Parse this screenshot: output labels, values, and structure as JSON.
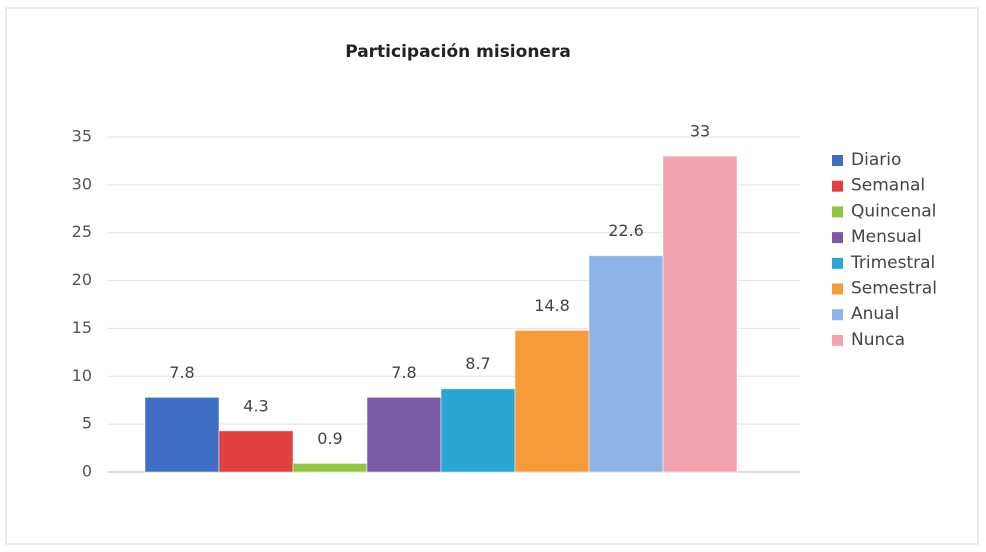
{
  "chart_data": {
    "type": "bar",
    "title": "Participación misionera",
    "categories": [
      null
    ],
    "series": [
      {
        "name": "Diario",
        "color": "#3f6fc4",
        "values": [
          7.8
        ]
      },
      {
        "name": "Semanal",
        "color": "#e0413f",
        "values": [
          4.3
        ]
      },
      {
        "name": "Quincenal",
        "color": "#8fc742",
        "values": [
          0.9
        ]
      },
      {
        "name": "Mensual",
        "color": "#7b5aa6",
        "values": [
          7.8
        ]
      },
      {
        "name": "Trimestral",
        "color": "#2aa6d3",
        "values": [
          8.7
        ]
      },
      {
        "name": "Semestral",
        "color": "#f79a3a",
        "values": [
          14.8
        ]
      },
      {
        "name": "Anual",
        "color": "#8eb3e6",
        "values": [
          22.6
        ]
      },
      {
        "name": "Nunca",
        "color": "#f2a3b0",
        "values": [
          33
        ]
      }
    ],
    "ylim": [
      0,
      35
    ],
    "yticks": [
      0,
      5,
      10,
      15,
      20,
      25,
      30,
      35
    ],
    "grid": true,
    "legend": "right"
  }
}
